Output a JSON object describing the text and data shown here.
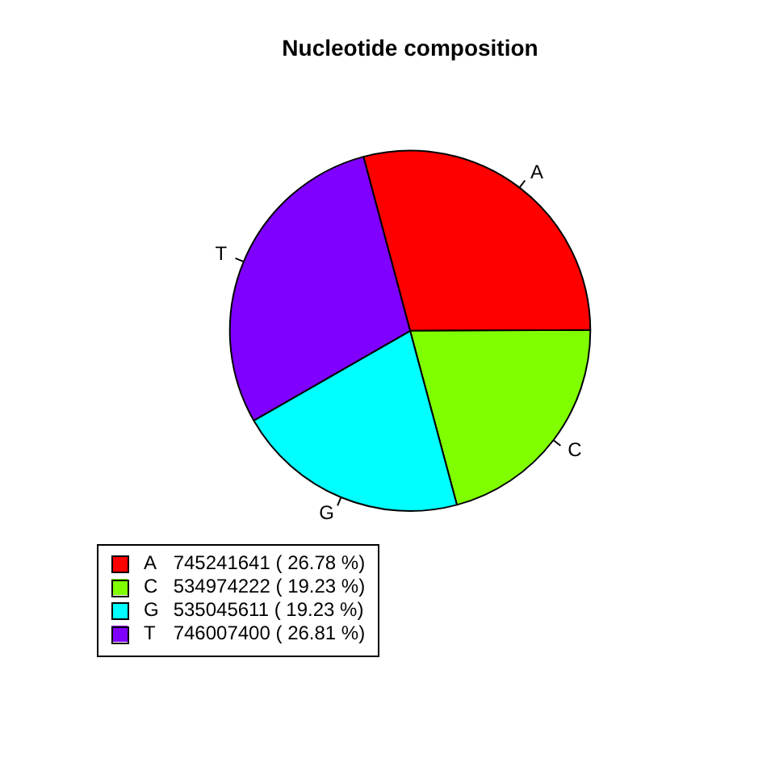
{
  "chart_data": {
    "type": "pie",
    "title": "Nucleotide composition",
    "categories": [
      "A",
      "C",
      "G",
      "T"
    ],
    "values": [
      745241641,
      534974222,
      535045611,
      746007400
    ],
    "colors": [
      "#ff0000",
      "#80ff00",
      "#00ffff",
      "#8000ff"
    ],
    "value_labels": [
      "745241641 ( 26.78 %)",
      "534974222 ( 19.23 %)",
      "535045611 ( 19.23 %)",
      "746007400 ( 26.81 %)"
    ],
    "legend": "bottom left"
  }
}
